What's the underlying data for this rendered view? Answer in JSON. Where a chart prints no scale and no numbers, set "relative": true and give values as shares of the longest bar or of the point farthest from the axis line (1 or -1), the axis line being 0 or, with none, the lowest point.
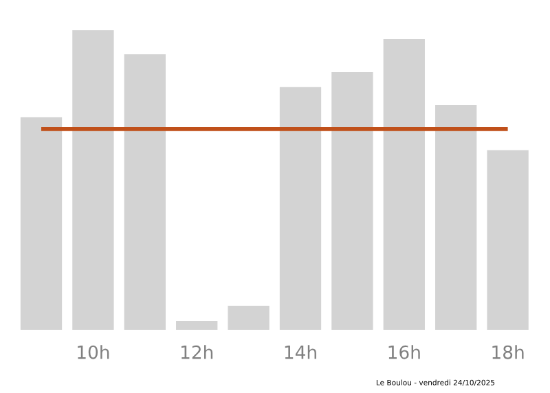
{
  "chart_data": {
    "type": "bar",
    "relative": true,
    "categories": [
      null,
      "10h",
      null,
      "12h",
      null,
      "14h",
      null,
      "16h",
      null,
      "18h"
    ],
    "values": [
      0.71,
      1,
      0.92,
      0.03,
      0.08,
      0.81,
      0.86,
      0.97,
      0.75,
      0.6
    ],
    "color": "#d3d3d3",
    "ref_lines": [
      {
        "axis": "y",
        "value": 0.67,
        "label": null,
        "color": "#c0501a"
      }
    ],
    "annotations": [
      "Le Boulou - vendredi 24/10/2025"
    ]
  }
}
